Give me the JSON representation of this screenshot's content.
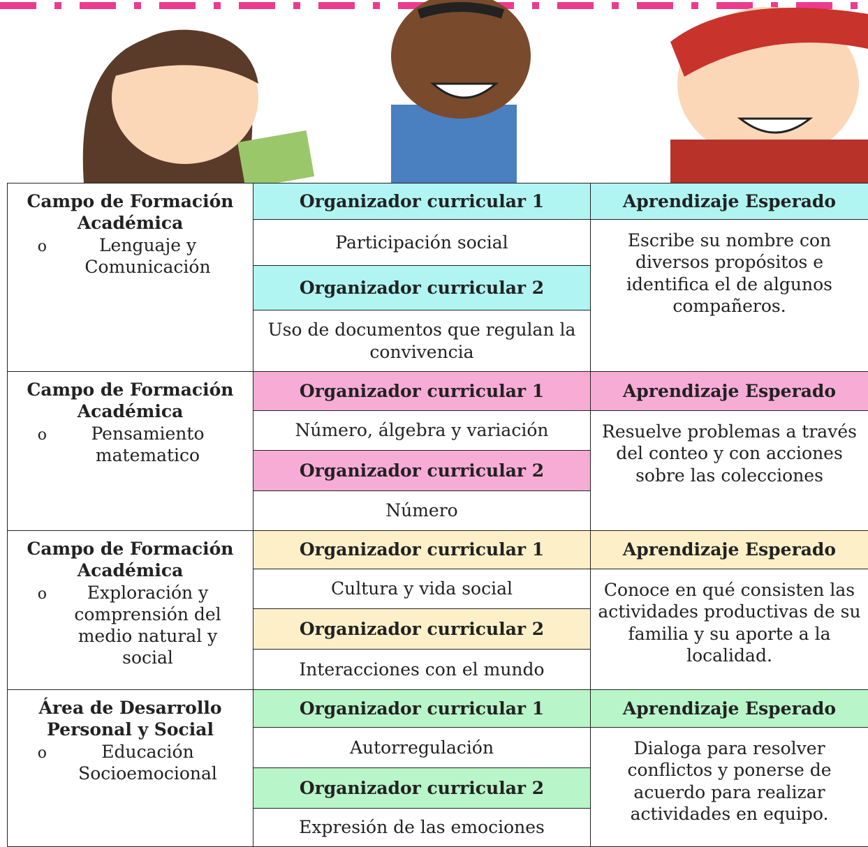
{
  "sections": [
    {
      "campo": "Campo de Formación Académica",
      "bullet": "o",
      "area": "Lenguaje y Comunicación",
      "org1_header": "Organizador curricular 1",
      "org1": "Participación social",
      "org2_header": "Organizador curricular 2",
      "org2": "Uso de documentos que regulan la convivencia",
      "aprendizaje_header": "Aprendizaje Esperado",
      "aprendizaje": "Escribe su nombre con diversos propósitos e identifica el de algunos compañeros."
    },
    {
      "campo": "Campo de Formación Académica",
      "bullet": "o",
      "area": "Pensamiento matematico",
      "org1_header": "Organizador curricular 1",
      "org1": "Número, álgebra y variación",
      "org2_header": "Organizador curricular 2",
      "org2": "Número",
      "aprendizaje_header": "Aprendizaje Esperado",
      "aprendizaje": "Resuelve problemas a través del conteo y con acciones sobre las colecciones"
    },
    {
      "campo": "Campo de Formación Académica",
      "bullet": "o",
      "area": "Exploración y comprensión del medio natural y social",
      "org1_header": "Organizador curricular 1",
      "org1": "Cultura y vida social",
      "org2_header": "Organizador curricular 2",
      "org2": "Interacciones con el mundo",
      "aprendizaje_header": "Aprendizaje Esperado",
      "aprendizaje": "Conoce en qué consisten las actividades productivas de su familia y su aporte a la localidad."
    },
    {
      "campo": "Área de Desarrollo Personal y Social",
      "bullet": "o",
      "area": "Educación Socioemocional",
      "org1_header": "Organizador curricular 1",
      "org1": "Autorregulación",
      "org2_header": "Organizador curricular 2",
      "org2": "Expresión de las emociones",
      "aprendizaje_header": "Aprendizaje Esperado",
      "aprendizaje": "Dialoga para resolver conflictos y ponerse de acuerdo para realizar actividades en equipo."
    }
  ]
}
